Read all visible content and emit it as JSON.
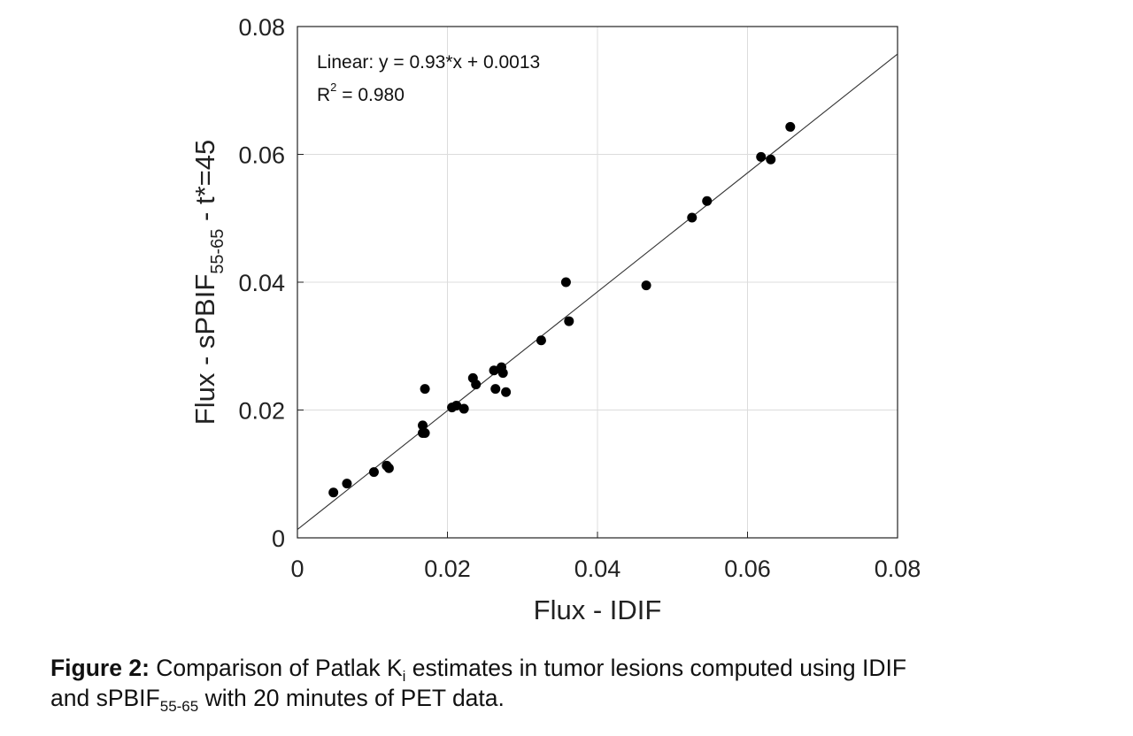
{
  "chart_data": {
    "type": "scatter",
    "xlabel": "Flux - IDIF",
    "ylabel": {
      "main": "Flux - sPBIF",
      "subscript": "55-65",
      "suffix": " - t*=45"
    },
    "xlim": [
      0,
      0.08
    ],
    "ylim": [
      0,
      0.08
    ],
    "xticks": [
      "0",
      "0.02",
      "0.04",
      "0.06",
      "0.08"
    ],
    "yticks": [
      "0",
      "0.02",
      "0.04",
      "0.06",
      "0.08"
    ],
    "grid": true,
    "fit": {
      "slope": 0.93,
      "intercept": 0.0013,
      "equation_text": "Linear:  y = 0.93*x + 0.0013",
      "r2_prefix": "R",
      "r2_exponent": "2",
      "r2_suffix": " = 0.980"
    },
    "points": [
      {
        "x": 0.0048,
        "y": 0.0071
      },
      {
        "x": 0.0066,
        "y": 0.0085
      },
      {
        "x": 0.0102,
        "y": 0.0103
      },
      {
        "x": 0.0119,
        "y": 0.0113
      },
      {
        "x": 0.0122,
        "y": 0.0109
      },
      {
        "x": 0.0167,
        "y": 0.0176
      },
      {
        "x": 0.0167,
        "y": 0.0164
      },
      {
        "x": 0.017,
        "y": 0.0164
      },
      {
        "x": 0.017,
        "y": 0.0233
      },
      {
        "x": 0.0206,
        "y": 0.0204
      },
      {
        "x": 0.0212,
        "y": 0.0207
      },
      {
        "x": 0.0222,
        "y": 0.0202
      },
      {
        "x": 0.0234,
        "y": 0.025
      },
      {
        "x": 0.0238,
        "y": 0.024
      },
      {
        "x": 0.0262,
        "y": 0.0262
      },
      {
        "x": 0.0264,
        "y": 0.0233
      },
      {
        "x": 0.0272,
        "y": 0.0267
      },
      {
        "x": 0.0274,
        "y": 0.0258
      },
      {
        "x": 0.0278,
        "y": 0.0228
      },
      {
        "x": 0.0325,
        "y": 0.0309
      },
      {
        "x": 0.0358,
        "y": 0.04
      },
      {
        "x": 0.0362,
        "y": 0.0339
      },
      {
        "x": 0.0465,
        "y": 0.0395
      },
      {
        "x": 0.0526,
        "y": 0.0501
      },
      {
        "x": 0.0546,
        "y": 0.0527
      },
      {
        "x": 0.0618,
        "y": 0.0596
      },
      {
        "x": 0.0631,
        "y": 0.0592
      },
      {
        "x": 0.0657,
        "y": 0.0643
      }
    ]
  },
  "caption": {
    "label": "Figure 2:",
    "text1": " Comparison of Patlak K",
    "sub1": "i",
    "text2": " estimates in tumor lesions computed using IDIF",
    "text3": "and sPBIF",
    "sub2": "55-65",
    "text4": " with 20 minutes of PET data."
  }
}
